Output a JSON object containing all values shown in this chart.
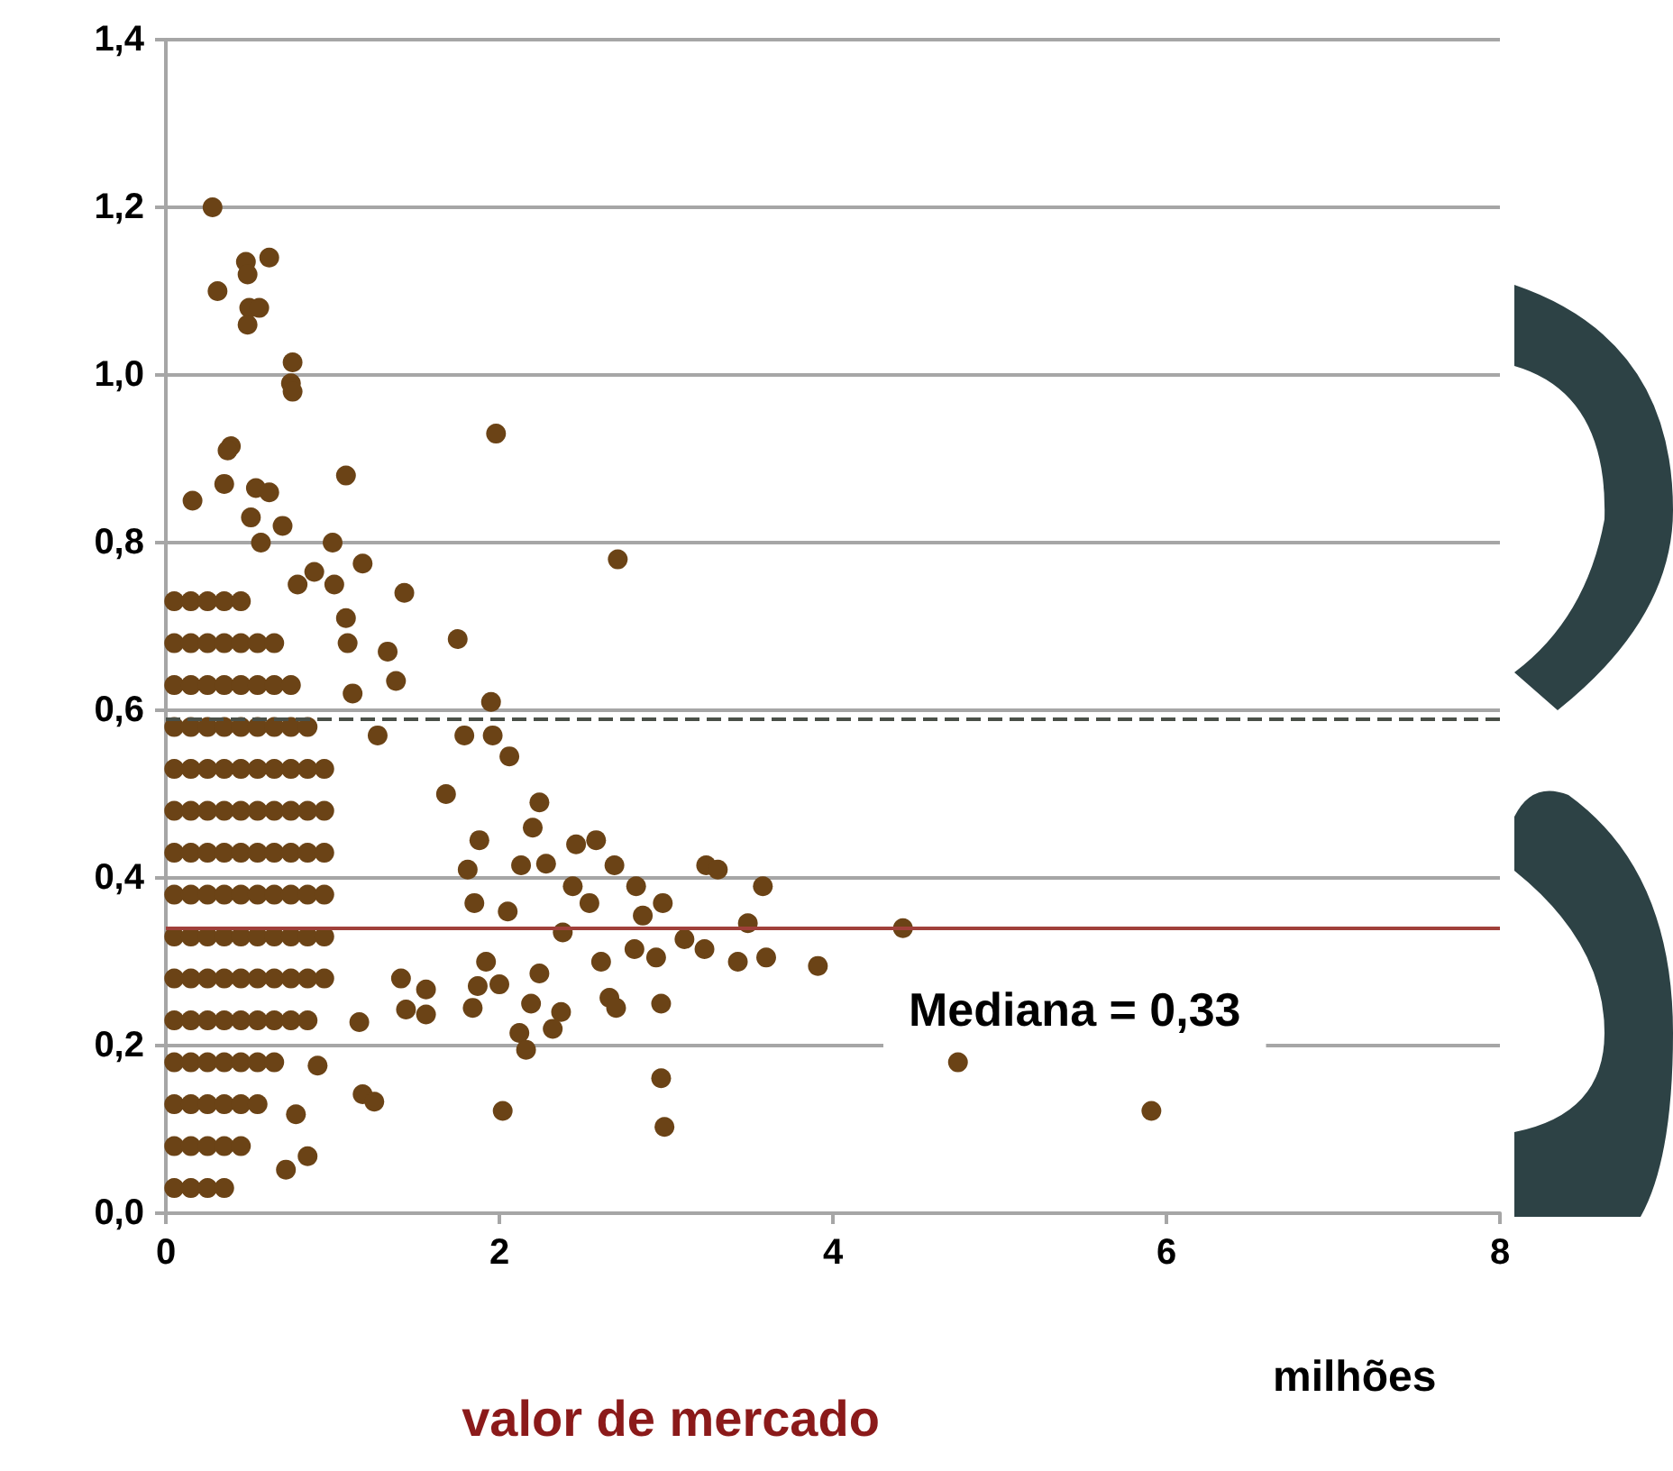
{
  "chart_data": {
    "type": "scatter",
    "xlabel": "valor de mercado",
    "annotations": [
      "Mediana = 0,33",
      "milhões"
    ],
    "xlim": [
      0,
      8
    ],
    "xticks": [
      0,
      2,
      4,
      6,
      8
    ],
    "ylim": [
      0,
      1.4
    ],
    "yticks": [
      {
        "value": 0,
        "label": "0,0"
      },
      {
        "value": 0.2,
        "label": "0,2"
      },
      {
        "value": 0.4,
        "label": "0,4"
      },
      {
        "value": 0.6,
        "label": "0,6"
      },
      {
        "value": 0.8,
        "label": "0,8"
      },
      {
        "value": 1.0,
        "label": "1,0"
      },
      {
        "value": 1.2,
        "label": "1,2"
      },
      {
        "value": 1.4,
        "label": "1,4"
      }
    ],
    "grid": "y",
    "marker": "circle",
    "ref_lines": [
      {
        "axis": "y",
        "value": 0.59,
        "color": "#4a5048",
        "line_style": "dashed"
      },
      {
        "axis": "y",
        "value": 0.34,
        "color": "#a0403a",
        "line_style": "solid"
      }
    ],
    "series": [
      {
        "color": "#6b4316",
        "x": [
          0.05,
          0.15,
          0.25,
          0.35,
          0.05,
          0.15,
          0.25,
          0.35,
          0.45,
          0.05,
          0.15,
          0.25,
          0.35,
          0.45,
          0.55,
          0.05,
          0.15,
          0.25,
          0.35,
          0.45,
          0.55,
          0.65,
          0.05,
          0.15,
          0.25,
          0.35,
          0.45,
          0.55,
          0.65,
          0.75,
          0.85,
          0.05,
          0.15,
          0.25,
          0.35,
          0.45,
          0.55,
          0.65,
          0.75,
          0.85,
          0.95,
          0.05,
          0.15,
          0.25,
          0.35,
          0.45,
          0.55,
          0.65,
          0.75,
          0.85,
          0.95,
          0.05,
          0.15,
          0.25,
          0.35,
          0.45,
          0.55,
          0.65,
          0.75,
          0.85,
          0.95,
          0.05,
          0.15,
          0.25,
          0.35,
          0.45,
          0.55,
          0.65,
          0.75,
          0.85,
          0.95,
          0.05,
          0.15,
          0.25,
          0.35,
          0.45,
          0.55,
          0.65,
          0.75,
          0.85,
          0.95,
          0.05,
          0.15,
          0.25,
          0.35,
          0.45,
          0.55,
          0.65,
          0.75,
          0.85,
          0.95,
          0.05,
          0.15,
          0.25,
          0.35,
          0.45,
          0.55,
          0.65,
          0.75,
          0.85,
          0.05,
          0.15,
          0.25,
          0.35,
          0.45,
          0.55,
          0.65,
          0.75,
          0.05,
          0.15,
          0.25,
          0.35,
          0.45,
          0.55,
          0.65,
          0.05,
          0.15,
          0.25,
          0.35,
          0.45,
          0.28,
          0.48,
          0.49,
          0.62,
          0.31,
          0.5,
          0.56,
          0.49,
          0.76,
          0.75,
          0.76,
          1.98,
          0.39,
          0.37,
          1.08,
          0.35,
          0.16,
          0.54,
          0.62,
          0.51,
          0.7,
          1.0,
          0.57,
          2.71,
          1.18,
          0.89,
          0.79,
          1.01,
          1.43,
          1.08,
          1.75,
          1.33,
          1.09,
          1.38,
          1.12,
          1.95,
          1.27,
          1.79,
          1.96,
          2.06,
          1.68,
          2.24,
          2.2,
          1.88,
          2.46,
          2.58,
          2.69,
          3.24,
          3.31,
          1.81,
          2.13,
          2.28,
          2.44,
          2.82,
          2.98,
          2.54,
          2.05,
          1.85,
          2.86,
          3.11,
          3.23,
          2.81,
          2.94,
          2.61,
          2.38,
          1.92,
          2.24,
          2.0,
          1.87,
          2.19,
          2.66,
          2.7,
          2.97,
          1.84,
          2.37,
          2.32,
          2.12,
          2.16,
          1.56,
          1.56,
          1.41,
          1.44,
          1.16,
          2.97,
          2.99,
          2.02,
          1.18,
          1.25,
          0.72,
          0.85,
          0.78,
          0.91,
          3.58,
          3.49,
          4.42,
          3.43,
          3.6,
          3.91,
          4.75,
          5.91
        ],
        "values": [
          0.03,
          0.03,
          0.03,
          0.03,
          0.08,
          0.08,
          0.08,
          0.08,
          0.08,
          0.13,
          0.13,
          0.13,
          0.13,
          0.13,
          0.13,
          0.18,
          0.18,
          0.18,
          0.18,
          0.18,
          0.18,
          0.18,
          0.23,
          0.23,
          0.23,
          0.23,
          0.23,
          0.23,
          0.23,
          0.23,
          0.23,
          0.28,
          0.28,
          0.28,
          0.28,
          0.28,
          0.28,
          0.28,
          0.28,
          0.28,
          0.28,
          0.33,
          0.33,
          0.33,
          0.33,
          0.33,
          0.33,
          0.33,
          0.33,
          0.33,
          0.33,
          0.38,
          0.38,
          0.38,
          0.38,
          0.38,
          0.38,
          0.38,
          0.38,
          0.38,
          0.38,
          0.43,
          0.43,
          0.43,
          0.43,
          0.43,
          0.43,
          0.43,
          0.43,
          0.43,
          0.43,
          0.48,
          0.48,
          0.48,
          0.48,
          0.48,
          0.48,
          0.48,
          0.48,
          0.48,
          0.48,
          0.53,
          0.53,
          0.53,
          0.53,
          0.53,
          0.53,
          0.53,
          0.53,
          0.53,
          0.53,
          0.58,
          0.58,
          0.58,
          0.58,
          0.58,
          0.58,
          0.58,
          0.58,
          0.58,
          0.63,
          0.63,
          0.63,
          0.63,
          0.63,
          0.63,
          0.63,
          0.63,
          0.68,
          0.68,
          0.68,
          0.68,
          0.68,
          0.68,
          0.68,
          0.73,
          0.73,
          0.73,
          0.73,
          0.73,
          1.2,
          1.135,
          1.12,
          1.14,
          1.1,
          1.08,
          1.08,
          1.06,
          1.015,
          0.99,
          0.98,
          0.93,
          0.915,
          0.91,
          0.88,
          0.87,
          0.85,
          0.865,
          0.86,
          0.83,
          0.82,
          0.8,
          0.8,
          0.78,
          0.775,
          0.765,
          0.75,
          0.75,
          0.74,
          0.71,
          0.685,
          0.67,
          0.68,
          0.635,
          0.62,
          0.61,
          0.57,
          0.57,
          0.57,
          0.545,
          0.5,
          0.49,
          0.46,
          0.445,
          0.44,
          0.445,
          0.415,
          0.415,
          0.41,
          0.41,
          0.415,
          0.417,
          0.39,
          0.39,
          0.37,
          0.37,
          0.36,
          0.37,
          0.355,
          0.327,
          0.315,
          0.315,
          0.305,
          0.3,
          0.335,
          0.3,
          0.286,
          0.273,
          0.271,
          0.25,
          0.257,
          0.245,
          0.25,
          0.245,
          0.24,
          0.22,
          0.215,
          0.195,
          0.237,
          0.267,
          0.28,
          0.243,
          0.228,
          0.161,
          0.103,
          0.122,
          0.142,
          0.133,
          0.052,
          0.068,
          0.118,
          0.176,
          0.39,
          0.346,
          0.34,
          0.3,
          0.305,
          0.295,
          0.18,
          0.122
        ]
      }
    ]
  }
}
